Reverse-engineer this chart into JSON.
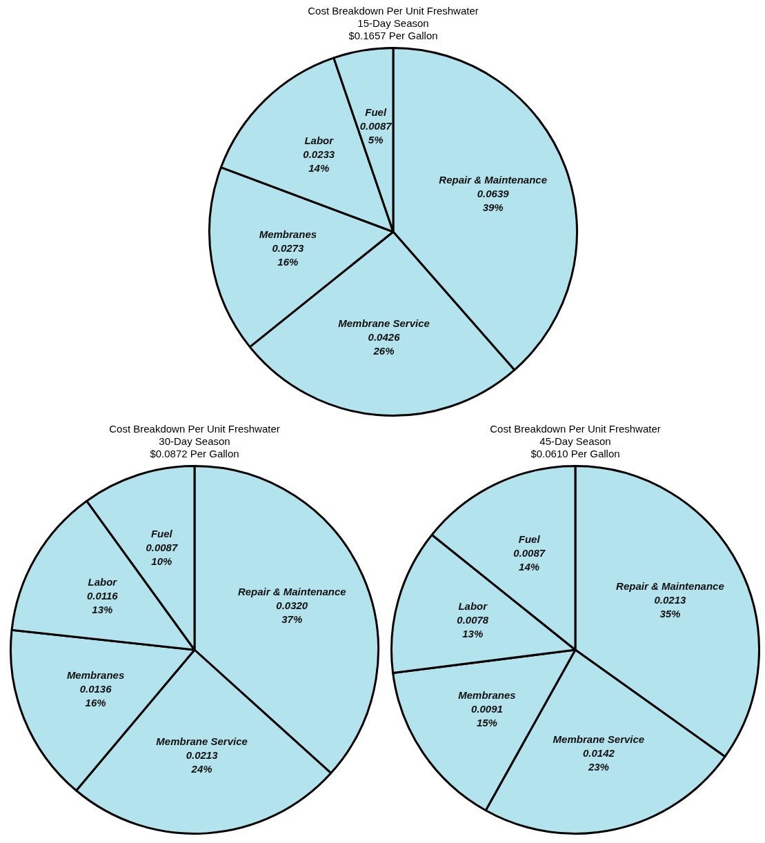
{
  "chart_data": [
    {
      "type": "pie",
      "title": "Cost Breakdown Per Unit Freshwater",
      "subtitle": "15-Day Season",
      "annotations": [
        "$0.1657 Per Gallon"
      ],
      "categories": [
        "Repair & Maintenance",
        "Membrane Service",
        "Membranes",
        "Labor",
        "Fuel"
      ],
      "values": [
        0.0639,
        0.0426,
        0.0273,
        0.0233,
        0.0087
      ],
      "value_labels": [
        "0.0639\n39%",
        "0.0426\n26%",
        "0.0273\n16%",
        "0.0233\n14%",
        "0.0087\n5%"
      ],
      "colors": [
        "#b3e3ec",
        "#b3e3ec",
        "#b3e3ec",
        "#b3e3ec",
        "#b3e3ec"
      ],
      "legend": false
    },
    {
      "type": "pie",
      "title": "Cost Breakdown Per Unit Freshwater",
      "subtitle": "30-Day Season",
      "annotations": [
        "$0.0872 Per Gallon"
      ],
      "categories": [
        "Repair & Maintenance",
        "Membrane Service",
        "Membranes",
        "Labor",
        "Fuel"
      ],
      "values": [
        0.032,
        0.0213,
        0.0136,
        0.0116,
        0.0087
      ],
      "value_labels": [
        "0.0320\n37%",
        "0.0213\n24%",
        "0.0136\n16%",
        "0.0116\n13%",
        "0.0087\n10%"
      ],
      "colors": [
        "#b3e3ec",
        "#b3e3ec",
        "#b3e3ec",
        "#b3e3ec",
        "#b3e3ec"
      ],
      "legend": false
    },
    {
      "type": "pie",
      "title": "Cost Breakdown Per Unit Freshwater",
      "subtitle": "45-Day Season",
      "annotations": [
        "$0.0610 Per Gallon"
      ],
      "categories": [
        "Repair & Maintenance",
        "Membrane Service",
        "Membranes",
        "Labor",
        "Fuel"
      ],
      "values": [
        0.0213,
        0.0142,
        0.0091,
        0.0078,
        0.0087
      ],
      "value_labels": [
        "0.0213\n35%",
        "0.0142\n23%",
        "0.0091\n15%",
        "0.0078\n13%",
        "0.0087\n14%"
      ],
      "colors": [
        "#b3e3ec",
        "#b3e3ec",
        "#b3e3ec",
        "#b3e3ec",
        "#b3e3ec"
      ],
      "legend": false
    }
  ]
}
